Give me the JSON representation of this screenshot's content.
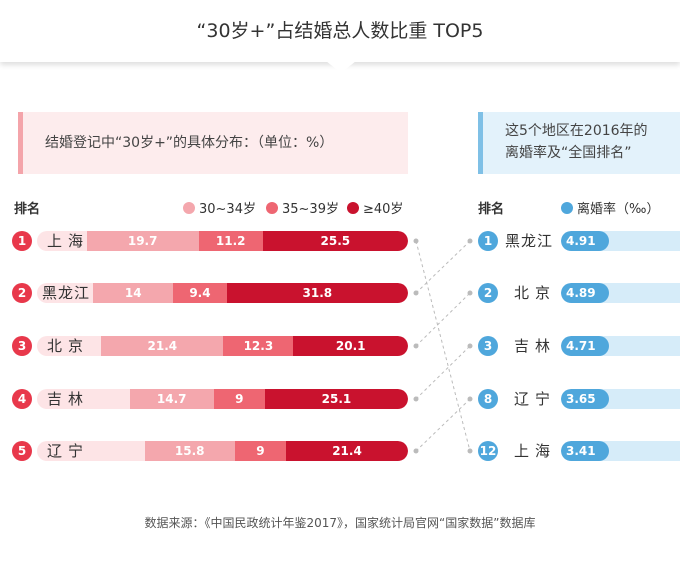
{
  "title": "“30岁+”占结婚总人数比重 TOP5",
  "left_note": "结婚登记中“30岁+”的具体分布：（单位：%）",
  "right_note_line1": "这5个地区在2016年的",
  "right_note_line2": "离婚率及“全国排名”",
  "rank_label": "排名",
  "legend": {
    "s1": "30~34岁",
    "s2": "35~39岁",
    "s3": "≥40岁",
    "rate": "离婚率（‰）"
  },
  "colors": {
    "s1": "#f4a7ad",
    "s2": "#ee6672",
    "s3": "#c9122e",
    "track": "#fde4e6",
    "rate": "#4fa7dc"
  },
  "chart_data": [
    {
      "type": "bar",
      "stacked": true,
      "categories": [
        "上海",
        "黑龙江",
        "北京",
        "吉林",
        "辽宁"
      ],
      "ranks": [
        "1",
        "2",
        "3",
        "4",
        "5"
      ],
      "series": [
        {
          "name": "30~34岁",
          "values": [
            19.7,
            14,
            21.4,
            14.7,
            15.8
          ]
        },
        {
          "name": "35~39岁",
          "values": [
            11.2,
            9.4,
            12.3,
            9,
            9
          ]
        },
        {
          "name": "≥40岁",
          "values": [
            25.5,
            31.8,
            20.1,
            25.1,
            21.4
          ]
        }
      ]
    },
    {
      "type": "bar",
      "categories": [
        "黑龙江",
        "北京",
        "吉林",
        "辽宁",
        "上海"
      ],
      "ranks": [
        "1",
        "2",
        "3",
        "8",
        "12"
      ],
      "series": [
        {
          "name": "离婚率（‰）",
          "values": [
            4.91,
            4.89,
            4.71,
            3.65,
            3.41
          ]
        }
      ]
    }
  ],
  "source": "数据来源：《中国民政统计年鉴2017》，国家统计局官网“国家数据”数据库"
}
